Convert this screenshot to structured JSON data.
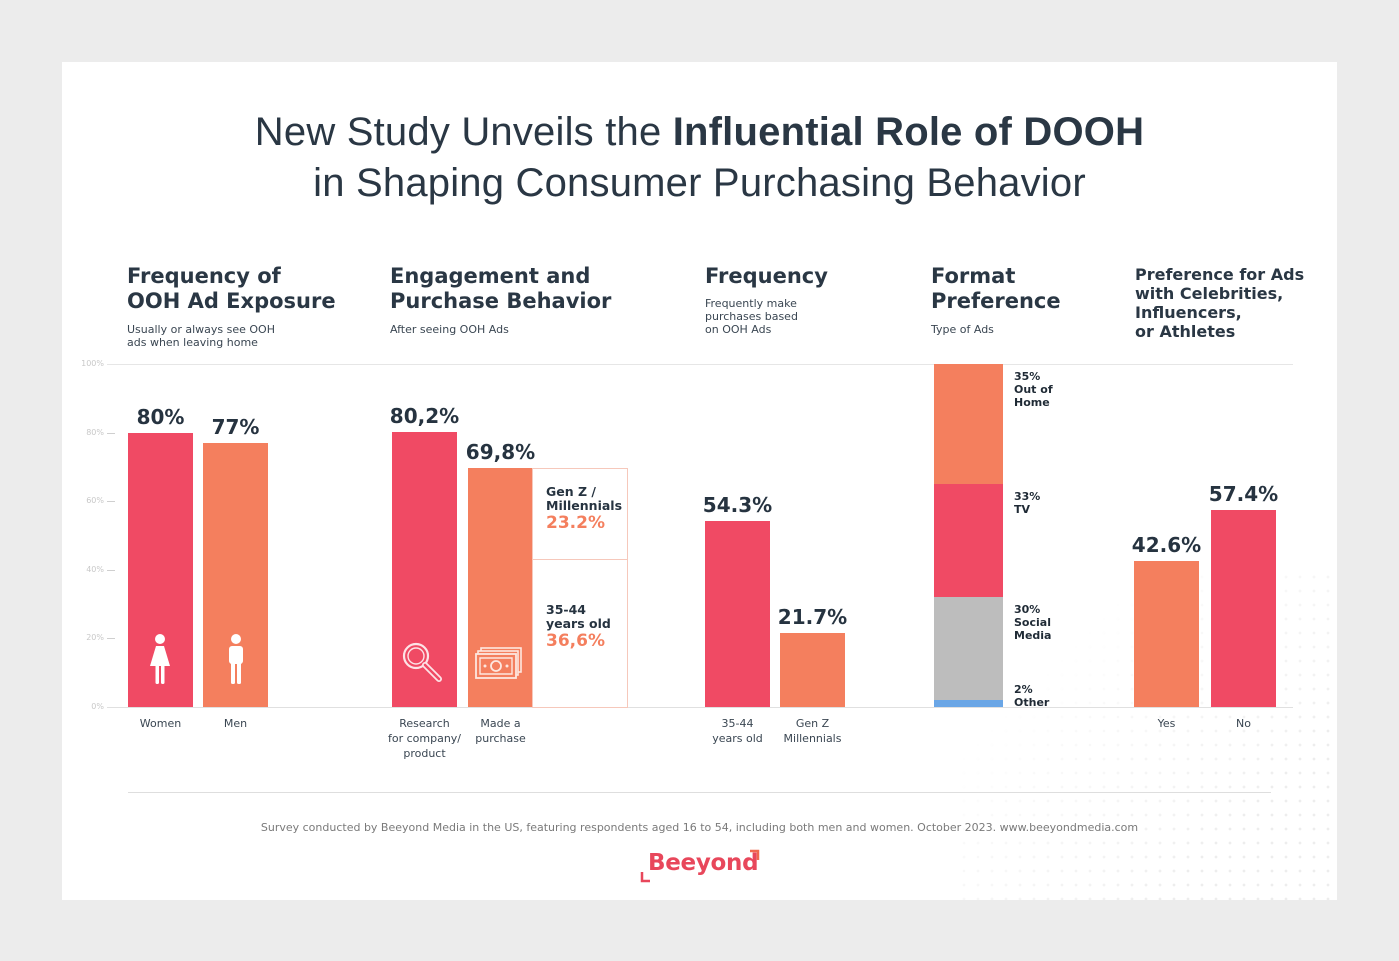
{
  "title": {
    "line1_regular": "New Study Unveils the ",
    "line1_bold": "Influential Role of DOOH",
    "line2": "in Shaping Consumer Purchasing Behavior"
  },
  "colors": {
    "red": "#f04a64",
    "orange": "#f47f5e",
    "grey": "#bdbdbd",
    "blue": "#6aa6e6",
    "text": "#263340"
  },
  "y_axis": {
    "ticks": [
      "100%",
      "80%",
      "60%",
      "40%",
      "20%",
      "0%"
    ]
  },
  "sections": {
    "exposure": {
      "title_l1": "Frequency of",
      "title_l2": "OOH Ad Exposure",
      "sub_l1": "Usually or always see OOH",
      "sub_l2": "ads when leaving home"
    },
    "engagement": {
      "title_l1": "Engagement and",
      "title_l2": "Purchase Behavior",
      "sub": "After seeing OOH Ads"
    },
    "frequency": {
      "title": "Frequency",
      "sub_l1": "Frequently make",
      "sub_l2": "purchases based",
      "sub_l3": "on OOH Ads"
    },
    "format": {
      "title_l1": "Format",
      "title_l2": "Preference",
      "sub": "Type of Ads"
    },
    "celebrity": {
      "title_l1": "Preference for Ads",
      "title_l2": "with Celebrities,",
      "title_l3": "Influencers,",
      "title_l4": "or Athletes"
    }
  },
  "chart_data": [
    {
      "type": "bar",
      "title": "Frequency of OOH Ad Exposure",
      "subtitle": "Usually or always see OOH ads when leaving home",
      "categories": [
        "Women",
        "Men"
      ],
      "values": [
        80,
        77
      ],
      "labels": [
        "80%",
        "77%"
      ],
      "icons": [
        "woman-icon",
        "man-icon"
      ],
      "ylim": [
        0,
        100
      ],
      "yticks": [
        0,
        20,
        40,
        60,
        80,
        100
      ]
    },
    {
      "type": "bar",
      "title": "Engagement and Purchase Behavior",
      "subtitle": "After seeing OOH Ads",
      "categories": [
        "Research for company/ product",
        "Made a purchase"
      ],
      "category_lines": [
        [
          "Research",
          "for company/",
          "product"
        ],
        [
          "Made a",
          "purchase"
        ]
      ],
      "values": [
        80.2,
        69.8
      ],
      "labels": [
        "80,2%",
        "69,8%"
      ],
      "icons": [
        "magnifier-icon",
        "money-icon"
      ],
      "breakdown": [
        {
          "label_l1": "Gen Z /",
          "label_l2": "Millennials",
          "value": 23.2,
          "value_label": "23.2%"
        },
        {
          "label_l1": "35-44",
          "label_l2": "years old",
          "value": 36.6,
          "value_label": "36,6%"
        }
      ],
      "ylim": [
        0,
        100
      ]
    },
    {
      "type": "bar",
      "title": "Frequency",
      "subtitle": "Frequently make purchases based on OOH Ads",
      "categories": [
        "35-44 years old",
        "Gen Z Millennials"
      ],
      "category_lines": [
        [
          "35-44",
          "years old"
        ],
        [
          "Gen Z",
          "Millennials"
        ]
      ],
      "values": [
        54.3,
        21.7
      ],
      "labels": [
        "54.3%",
        "21.7%"
      ],
      "ylim": [
        0,
        100
      ]
    },
    {
      "type": "bar",
      "stacked": true,
      "title": "Format Preference",
      "subtitle": "Type of Ads",
      "segments": [
        {
          "name_l1": "Out of",
          "name_l2": "Home",
          "value": 35,
          "label": "35%",
          "color": "orange"
        },
        {
          "name_l1": "TV",
          "name_l2": "",
          "value": 33,
          "label": "33%",
          "color": "red"
        },
        {
          "name_l1": "Social",
          "name_l2": "Media",
          "value": 30,
          "label": "30%",
          "color": "grey"
        },
        {
          "name_l1": "Other",
          "name_l2": "",
          "value": 2,
          "label": "2%",
          "color": "blue"
        }
      ],
      "ylim": [
        0,
        100
      ]
    },
    {
      "type": "bar",
      "title": "Preference for Ads with Celebrities, Influencers, or Athletes",
      "categories": [
        "Yes",
        "No"
      ],
      "values": [
        42.6,
        57.4
      ],
      "labels": [
        "42.6%",
        "57.4%"
      ],
      "ylim": [
        0,
        100
      ]
    }
  ],
  "footer": {
    "note": "Survey conducted by Beeyond Media in the US, featuring respondents aged 16 to 54, including both men and women. October 2023. www.beeyondmedia.com",
    "logo_text": "Beeyond"
  }
}
